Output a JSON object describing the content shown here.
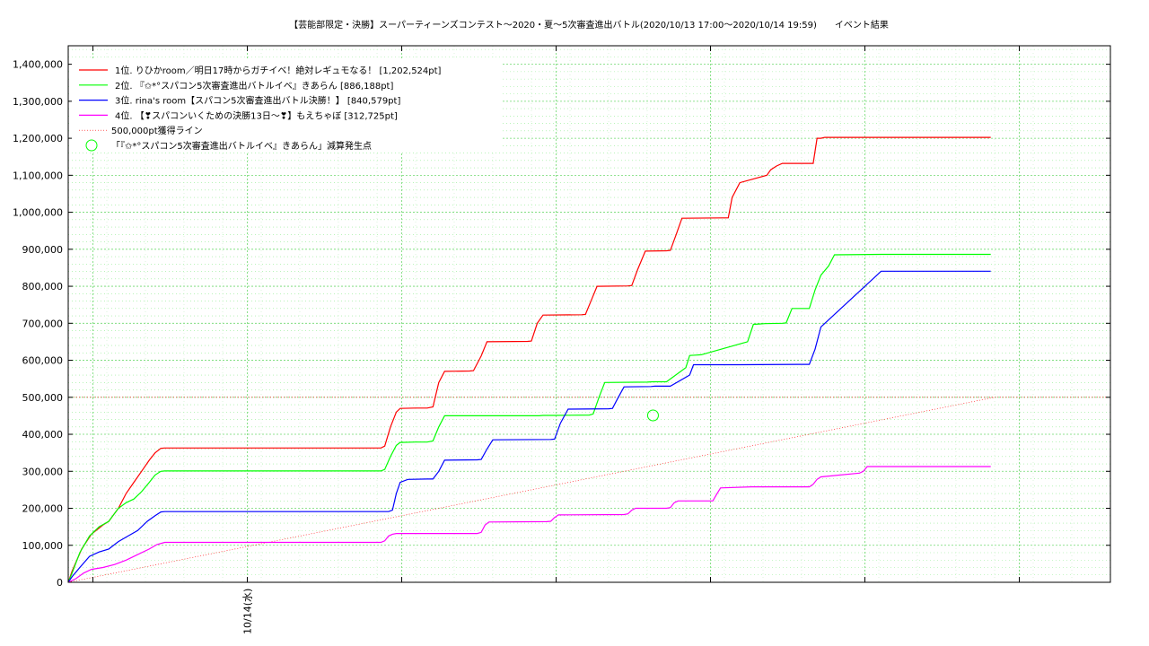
{
  "chart_data": {
    "type": "line",
    "title": "【芸能部限定・決勝】スーパーティーンズコンテスト～2020・夏～5次審査進出バトル(2020/10/13 17:00～2020/10/14 19:59)　　イベント結果",
    "xlabel": "",
    "ylabel": "",
    "x_range_hours": [
      0,
      27
    ],
    "ylim": [
      0,
      1450000
    ],
    "yticks": [
      0,
      100000,
      200000,
      300000,
      400000,
      500000,
      600000,
      700000,
      800000,
      900000,
      1000000,
      1100000,
      1200000,
      1300000,
      1400000
    ],
    "ytick_labels": [
      "0",
      "100,000",
      "200,000",
      "300,000",
      "400,000",
      "500,000",
      "600,000",
      "700,000",
      "800,000",
      "900,000",
      "1,000,000",
      "1,100,000",
      "1,200,000",
      "1,300,000",
      "1,400,000"
    ],
    "x_major_ticks_hours": [
      0.64,
      4.64,
      8.64,
      12.64,
      16.64,
      20.64,
      24.64
    ],
    "x_labeled_ticks": [
      {
        "hour": 4.64,
        "label": "10/14(水)"
      }
    ],
    "grid": true,
    "legend_position": "top-left",
    "series": [
      {
        "name": "1位. りひかroom／明日17時からガチイベ！絶対レギュモなる！ [1,202,524pt]",
        "color": "#ff0000",
        "x": [
          0,
          0.1,
          0.35,
          0.6,
          0.9,
          1.05,
          1.3,
          1.5,
          1.7,
          1.9,
          2.1,
          2.25,
          2.4,
          2.5,
          8.1,
          8.2,
          8.35,
          8.5,
          8.6,
          9.0,
          9.3,
          9.45,
          9.6,
          9.75,
          10.4,
          10.5,
          10.7,
          10.85,
          11.9,
          12.0,
          12.15,
          12.3,
          13.3,
          13.4,
          13.55,
          13.7,
          14.5,
          14.6,
          14.75,
          14.95,
          15.5,
          15.6,
          15.75,
          15.9,
          17.0,
          17.1,
          17.2,
          17.4,
          18.1,
          18.2,
          18.35,
          18.5,
          19.3,
          19.4,
          19.5,
          19.6,
          19.95,
          20.1,
          20.3,
          20.45,
          20.5,
          21.06,
          21.06,
          21.12,
          21.12,
          21.18,
          21.18,
          23.9
        ],
        "y": [
          0,
          30000,
          90000,
          130000,
          155000,
          165000,
          200000,
          240000,
          270000,
          300000,
          330000,
          350000,
          362000,
          363000,
          363000,
          368000,
          420000,
          460000,
          470000,
          471000,
          471000,
          474000,
          540000,
          570000,
          571000,
          572000,
          612000,
          650000,
          651000,
          652000,
          700000,
          722000,
          723000,
          724000,
          762000,
          800000,
          801000,
          802000,
          845000,
          895000,
          896000,
          897000,
          940000,
          984000,
          985000,
          985000,
          1040000,
          1080000,
          1100000,
          1115000,
          1125000,
          1132000,
          1132000,
          1200000,
          1200000,
          1202524,
          1202524,
          1202524,
          1202524,
          1202524,
          1202524,
          1202524,
          1202524,
          1202524,
          1202524,
          1202524,
          1202524,
          1202524
        ]
      },
      {
        "name": "2位. 『✩*°スパコン5次審査進出バトルイベ』きあらん [886,188pt]",
        "color": "#00ff00",
        "x": [
          0,
          0.1,
          0.3,
          0.55,
          0.8,
          1.05,
          1.3,
          1.5,
          1.7,
          1.9,
          2.1,
          2.25,
          2.4,
          2.5,
          8.1,
          8.2,
          8.35,
          8.5,
          8.6,
          9.0,
          9.3,
          9.45,
          9.6,
          9.75,
          12.2,
          12.3,
          12.45,
          12.6,
          13.5,
          13.6,
          13.75,
          13.9,
          15.0,
          15.15,
          15.25,
          15.5,
          16.0,
          16.1,
          16.25,
          16.4,
          17.6,
          17.75,
          17.9,
          18.05,
          18.5,
          18.6,
          18.75,
          18.85,
          19.1,
          19.2,
          19.35,
          19.5,
          19.7,
          19.85,
          21.06,
          21.06,
          23.9
        ],
        "y": [
          0,
          25000,
          80000,
          125000,
          150000,
          165000,
          200000,
          215000,
          225000,
          245000,
          270000,
          290000,
          300000,
          301000,
          301000,
          305000,
          340000,
          370000,
          378000,
          379000,
          379000,
          382000,
          420000,
          450000,
          450000,
          451000,
          451000,
          451000,
          452000,
          455000,
          500000,
          540000,
          541000,
          542000,
          542000,
          542000,
          580000,
          613000,
          614000,
          615000,
          650000,
          697000,
          698000,
          699000,
          700000,
          701000,
          740000,
          740000,
          740000,
          740000,
          790000,
          830000,
          855000,
          885000,
          886188,
          886188,
          886188
        ]
      },
      {
        "name": "3位. rina's room【スパコン5次審査進出バトル決勝！】 [840,579pt]",
        "color": "#0000ff",
        "x": [
          0,
          0.1,
          0.3,
          0.55,
          0.8,
          1.05,
          1.3,
          1.55,
          1.8,
          2.05,
          2.25,
          2.4,
          2.5,
          8.3,
          8.4,
          8.5,
          8.6,
          8.8,
          9.3,
          9.45,
          9.6,
          9.75,
          10.6,
          10.7,
          10.85,
          11.0,
          12.5,
          12.6,
          12.75,
          12.95,
          14.0,
          14.1,
          14.25,
          14.4,
          15.1,
          15.2,
          15.4,
          15.6,
          16.1,
          16.2,
          16.35,
          16.5,
          17.0,
          17.1,
          17.25,
          17.4,
          19.1,
          19.2,
          19.35,
          19.5,
          21.06,
          23.9
        ],
        "y": [
          0,
          15000,
          40000,
          70000,
          82000,
          90000,
          110000,
          125000,
          140000,
          165000,
          180000,
          190000,
          191000,
          191000,
          195000,
          240000,
          270000,
          278000,
          279000,
          279000,
          300000,
          330000,
          331000,
          332000,
          360000,
          385000,
          386000,
          387000,
          430000,
          468000,
          469000,
          470000,
          500000,
          528000,
          529000,
          530000,
          530000,
          530000,
          560000,
          588000,
          588000,
          588000,
          588000,
          588000,
          588000,
          588000,
          589000,
          589000,
          630000,
          690000,
          840579,
          840579
        ]
      },
      {
        "name": "4位. 【❣スパコンいくための決勝13日〜❣】もえちゃぼ [312,725pt]",
        "color": "#ff00ff",
        "x": [
          0,
          0.2,
          0.4,
          0.6,
          0.9,
          1.2,
          1.5,
          1.8,
          2.1,
          2.3,
          2.5,
          8.1,
          8.2,
          8.3,
          8.4,
          8.5,
          10.6,
          10.7,
          10.8,
          10.9,
          12.4,
          12.5,
          12.6,
          12.7,
          14.4,
          14.5,
          14.6,
          14.7,
          15.5,
          15.6,
          15.7,
          15.8,
          16.6,
          16.7,
          16.8,
          16.9,
          17.7,
          17.8,
          17.9,
          18.0,
          19.2,
          19.3,
          19.4,
          19.5,
          20.5,
          20.6,
          20.7,
          20.8,
          21.06,
          23.9
        ],
        "y": [
          0,
          10000,
          25000,
          35000,
          40000,
          48000,
          60000,
          75000,
          90000,
          102000,
          108000,
          108000,
          112000,
          125000,
          130000,
          132000,
          132000,
          135000,
          155000,
          163000,
          164000,
          165000,
          175000,
          182000,
          183000,
          185000,
          195000,
          200000,
          200000,
          202000,
          215000,
          220000,
          220000,
          220000,
          238000,
          255000,
          258000,
          258000,
          258000,
          258000,
          258000,
          265000,
          278000,
          285000,
          295000,
          300000,
          312725,
          312725,
          312725,
          312725
        ]
      }
    ],
    "reference_line": {
      "name": "500,000pt獲得ライン",
      "color": "#ff0000",
      "y": 500000,
      "x": [
        0,
        24
      ]
    },
    "marker": {
      "name": "「『✩*°スパコン5次審査進出バトルイベ』きあらん」減算発生点",
      "color": "#00ff00",
      "x": 15.15,
      "y": 451000
    }
  }
}
